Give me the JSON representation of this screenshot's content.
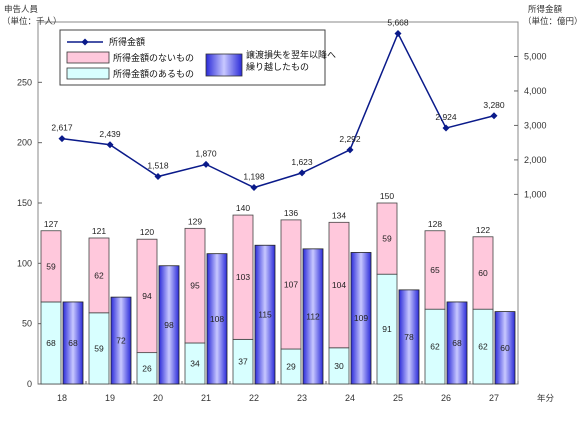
{
  "chart_data": {
    "type": "bar",
    "left_axis_title": [
      "申告人員",
      "（単位：千人）"
    ],
    "right_axis_title": [
      "所得金額",
      "（単位：億円）"
    ],
    "x_axis_title": "年分",
    "categories": [
      "18",
      "19",
      "20",
      "21",
      "22",
      "23",
      "24",
      "25",
      "26",
      "27"
    ],
    "left_axis": {
      "ylim": [
        0,
        300
      ],
      "ticks": [
        0,
        50,
        100,
        150,
        200,
        250
      ]
    },
    "right_axis": {
      "ylim": [
        -4500,
        6000
      ],
      "ticks": [
        "1,000",
        "2,000",
        "3,000",
        "4,000",
        "5,000"
      ],
      "tick_values": [
        1000,
        2000,
        3000,
        4000,
        5000
      ]
    },
    "stacked_totals": [
      "127",
      "121",
      "120",
      "129",
      "140",
      "136",
      "134",
      "150",
      "128",
      "122"
    ],
    "series": [
      {
        "name": "所得金額のあるもの",
        "type": "stacked-bar",
        "color": "#d8ffff",
        "values": [
          68,
          59,
          26,
          34,
          37,
          29,
          30,
          91,
          62,
          62
        ]
      },
      {
        "name": "所得金額のないもの",
        "type": "stacked-bar",
        "color": "#ffc8dc",
        "values": [
          59,
          62,
          94,
          95,
          103,
          107,
          104,
          59,
          65,
          60
        ]
      },
      {
        "name": "譲渡損失を翌年以降へ繰り越したもの",
        "type": "bar",
        "color": "#8888ff",
        "values": [
          68,
          72,
          98,
          108,
          115,
          112,
          109,
          78,
          68,
          60
        ]
      },
      {
        "name": "所得金額",
        "type": "line",
        "color": "#0a1a8a",
        "axis": "right",
        "values": [
          2617,
          2439,
          1518,
          1870,
          1198,
          1623,
          2292,
          5668,
          2924,
          3280
        ],
        "labels": [
          "2,617",
          "2,439",
          "1,518",
          "1,870",
          "1,198",
          "1,623",
          "2,292",
          "5,668",
          "2,924",
          "3,280"
        ]
      }
    ],
    "legend": {
      "line": "所得金額",
      "pink": "所得金額のないもの",
      "cyan": "所得金額のあるもの",
      "blue_line1": "譲渡損失を翌年以降へ",
      "blue_line2": "繰り越したもの"
    },
    "grid": false,
    "legend_position": "top-left"
  }
}
